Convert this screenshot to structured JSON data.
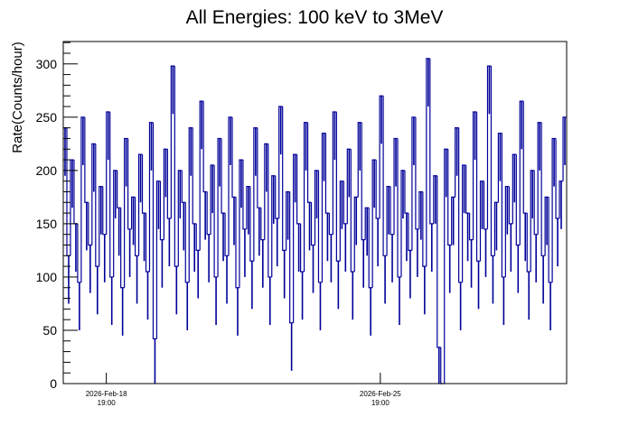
{
  "chart_data": {
    "type": "line",
    "title": "All Energies:  100 keV to 3MeV",
    "xlabel": "",
    "ylabel": "Rate(Counts/hour)",
    "ylim": [
      0,
      321
    ],
    "yticks": [
      0,
      50,
      100,
      150,
      200,
      250,
      300
    ],
    "xticks": [
      {
        "date": "2026-Feb-18",
        "time": "19:00",
        "day_offset": 1.1
      },
      {
        "date": "2026-Feb-25",
        "time": "19:00",
        "day_offset": 8.1
      }
    ],
    "x_range_days": 12.86,
    "grid": false,
    "color": "#000099",
    "series": [
      {
        "name": "rate",
        "values": [
          240,
          120,
          210,
          150,
          95,
          250,
          170,
          130,
          225,
          110,
          185,
          140,
          255,
          100,
          200,
          165,
          90,
          230,
          145,
          175,
          120,
          215,
          160,
          105,
          245,
          42,
          190,
          135,
          220,
          155,
          298,
          110,
          200,
          170,
          95,
          240,
          150,
          125,
          265,
          180,
          140,
          205,
          100,
          230,
          160,
          120,
          250,
          175,
          90,
          210,
          145,
          185,
          115,
          240,
          165,
          135,
          225,
          100,
          195,
          155,
          260,
          125,
          180,
          57,
          215,
          150,
          105,
          245,
          170,
          130,
          200,
          95,
          235,
          160,
          140,
          255,
          115,
          190,
          150,
          220,
          105,
          175,
          245,
          135,
          165,
          90,
          210,
          155,
          270,
          120,
          185,
          140,
          230,
          100,
          200,
          160,
          125,
          250,
          145,
          180,
          110,
          305,
          150,
          195,
          34,
          0,
          220,
          130,
          175,
          240,
          95,
          205,
          160,
          135,
          255,
          115,
          190,
          145,
          298,
          120,
          170,
          235,
          100,
          185,
          150,
          215,
          130,
          265,
          160,
          105,
          200,
          140,
          245,
          120,
          175,
          95,
          230,
          155,
          190,
          250
        ]
      }
    ]
  }
}
